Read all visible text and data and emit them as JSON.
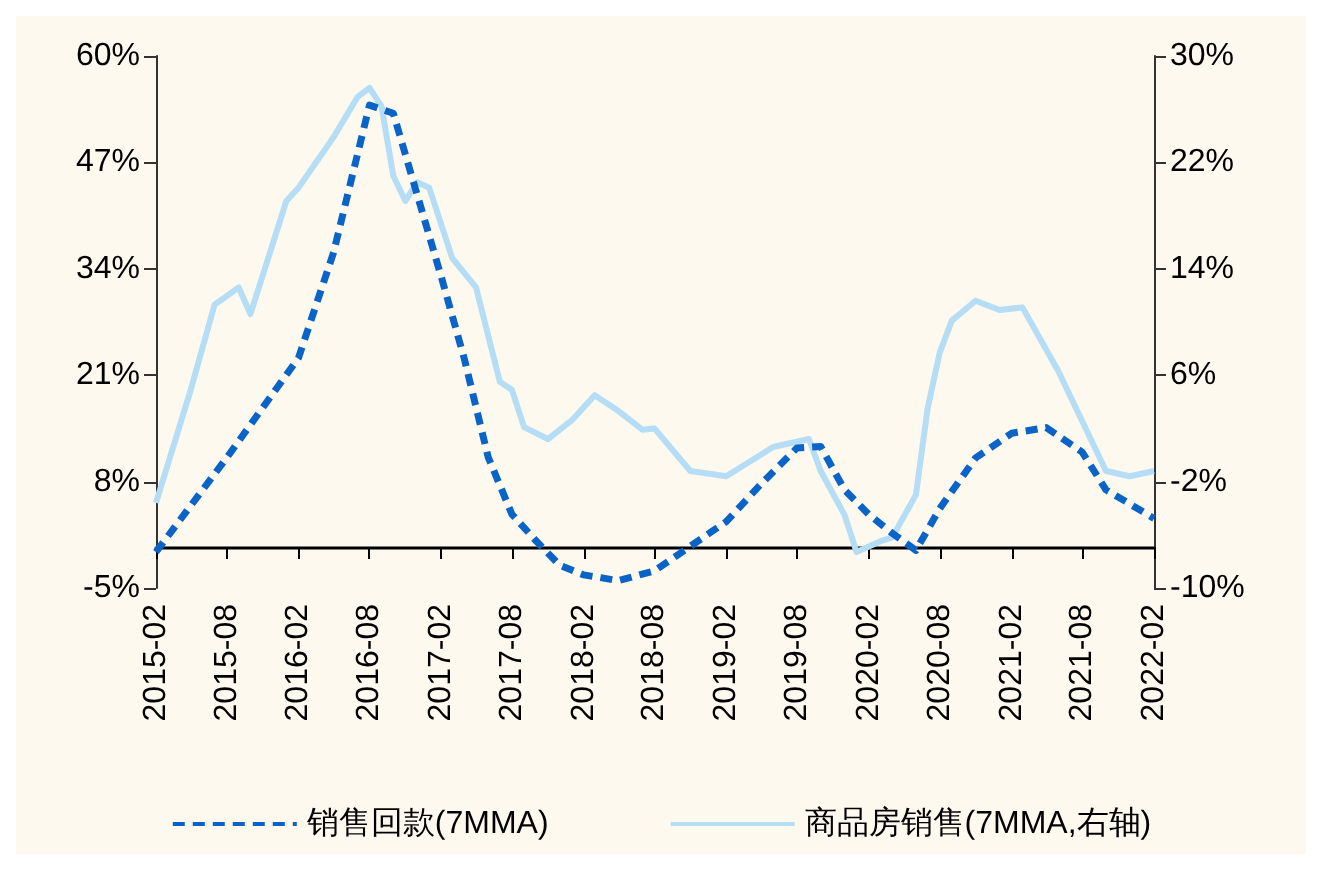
{
  "chart_data": {
    "type": "line",
    "legend": "bottom",
    "grid": false,
    "marker": "none",
    "xlim": [
      "2015-02",
      "2022-02"
    ],
    "xticks": [
      "2015-02",
      "2015-08",
      "2016-02",
      "2016-08",
      "2017-02",
      "2017-08",
      "2018-02",
      "2018-08",
      "2019-02",
      "2019-08",
      "2020-02",
      "2020-08",
      "2021-02",
      "2021-08",
      "2022-02"
    ],
    "ylim": [
      -5,
      60
    ],
    "yticks": [
      {
        "value": -5,
        "label": "-5%"
      },
      {
        "value": 8,
        "label": "8%"
      },
      {
        "value": 21,
        "label": "21%"
      },
      {
        "value": 34,
        "label": "34%"
      },
      {
        "value": 47,
        "label": "47%"
      },
      {
        "value": 60,
        "label": "60%"
      }
    ],
    "y2lim": [
      -10,
      30
    ],
    "y2ticks": [
      {
        "value": -10,
        "label": "-10%"
      },
      {
        "value": -2,
        "label": "-2%"
      },
      {
        "value": 6,
        "label": "6%"
      },
      {
        "value": 14,
        "label": "14%"
      },
      {
        "value": 22,
        "label": "22%"
      },
      {
        "value": 30,
        "label": "30%"
      }
    ],
    "series": [
      {
        "name": "销售回款(7MMA)",
        "color": "#0a64c8",
        "line_style": "dashed",
        "x": [
          "2015-02",
          "2015-08",
          "2016-02",
          "2016-05",
          "2016-08",
          "2016-10",
          "2017-02",
          "2017-04",
          "2017-06",
          "2017-08",
          "2017-10",
          "2017-12",
          "2018-02",
          "2018-05",
          "2018-08",
          "2019-02",
          "2019-05",
          "2019-08",
          "2019-10",
          "2019-12",
          "2020-02",
          "2020-04",
          "2020-06",
          "2020-08",
          "2020-11",
          "2021-02",
          "2021-05",
          "2021-08",
          "2021-10",
          "2022-02"
        ],
        "values": [
          -0.6,
          10.9,
          23.1,
          36,
          54,
          53,
          33,
          23,
          11,
          4,
          0.8,
          -2.2,
          -3.4,
          -4.1,
          -2.9,
          3.1,
          7.7,
          12.1,
          12.3,
          7,
          4,
          1.7,
          -0.4,
          4.7,
          10.9,
          13.9,
          14.6,
          11.6,
          7,
          3.5
        ]
      },
      {
        "name": "商品房销售(7MMA,右轴)",
        "color": "#b5ddf5",
        "line_style": "solid",
        "axis": "y2",
        "x": [
          "2015-02",
          "2015-05",
          "2015-07",
          "2015-09",
          "2015-10",
          "2016-01",
          "2016-02",
          "2016-05",
          "2016-07",
          "2016-08",
          "2016-09",
          "2016-10",
          "2016-11",
          "2016-12",
          "2017-01",
          "2017-03",
          "2017-05",
          "2017-07",
          "2017-08",
          "2017-09",
          "2017-11",
          "2018-01",
          "2018-03",
          "2018-05",
          "2018-07",
          "2018-08",
          "2018-11",
          "2019-02",
          "2019-06",
          "2019-09",
          "2019-10",
          "2019-12",
          "2020-01",
          "2020-03",
          "2020-04",
          "2020-06",
          "2020-07",
          "2020-08",
          "2020-09",
          "2020-11",
          "2021-01",
          "2021-03",
          "2021-06",
          "2021-10",
          "2021-12",
          "2022-02"
        ],
        "values": [
          -3.6,
          4.9,
          11.3,
          12.6,
          10.6,
          19.1,
          20.1,
          23.9,
          26.9,
          27.6,
          26.2,
          21,
          19.1,
          20.5,
          20.1,
          14.8,
          12.6,
          5.5,
          4.9,
          2.1,
          1.2,
          2.6,
          4.5,
          3.3,
          1.9,
          2,
          -1.2,
          -1.6,
          0.6,
          1.2,
          -1.2,
          -4.5,
          -7.3,
          -6.5,
          -6.2,
          -3,
          3.5,
          7.7,
          10.1,
          11.6,
          10.9,
          11.1,
          6.3,
          -1.2,
          -1.6,
          -1.2
        ]
      }
    ]
  }
}
